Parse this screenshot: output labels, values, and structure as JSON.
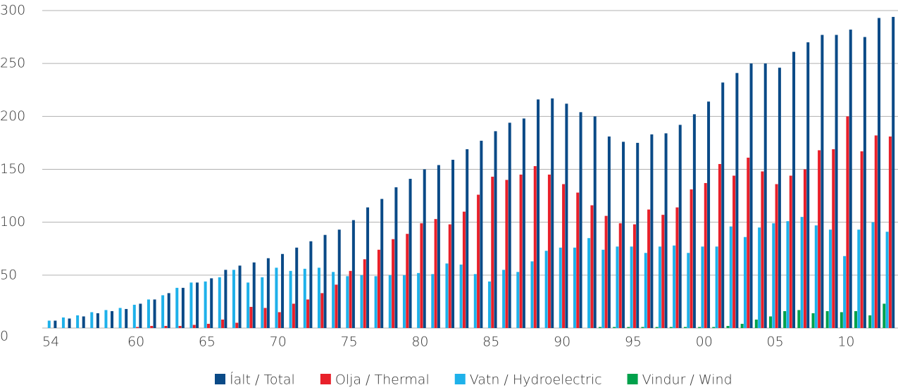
{
  "chart_data": {
    "type": "bar",
    "categories": [
      "54",
      null,
      null,
      null,
      null,
      null,
      "60",
      null,
      null,
      null,
      null,
      "65",
      null,
      null,
      null,
      null,
      "70",
      null,
      null,
      null,
      null,
      "75",
      null,
      null,
      null,
      null,
      "80",
      null,
      null,
      null,
      null,
      "85",
      null,
      null,
      null,
      null,
      "90",
      null,
      null,
      null,
      null,
      "95",
      null,
      null,
      null,
      null,
      "00",
      null,
      null,
      null,
      null,
      "05",
      null,
      null,
      null,
      null,
      "10",
      null,
      null,
      null
    ],
    "series": [
      {
        "name": "Vindur / Wind",
        "color": "#00a14b",
        "values": [
          0,
          0,
          0,
          0,
          0,
          0,
          0,
          0,
          0,
          0,
          0,
          0,
          0,
          0,
          0,
          0,
          0,
          0,
          0,
          0,
          0,
          0,
          0,
          0,
          0,
          0,
          0,
          0,
          0,
          0,
          0,
          0,
          0,
          0,
          0,
          0,
          0,
          0,
          0,
          1,
          1,
          1,
          1,
          1,
          1,
          1,
          1,
          1,
          2,
          4,
          8,
          11,
          16,
          17,
          14,
          16,
          15,
          16,
          12,
          23
        ]
      },
      {
        "name": "Vatn / Hydroelectric",
        "color": "#1eb1ea",
        "values": [
          7,
          10,
          12,
          15,
          17,
          19,
          22,
          27,
          31,
          38,
          43,
          44,
          48,
          55,
          43,
          48,
          57,
          54,
          56,
          57,
          53,
          49,
          50,
          49,
          50,
          50,
          52,
          51,
          61,
          60,
          51,
          44,
          55,
          53,
          63,
          73,
          76,
          76,
          85,
          74,
          77,
          77,
          71,
          77,
          78,
          71,
          77,
          77,
          96,
          86,
          95,
          99,
          101,
          105,
          97,
          93,
          68,
          93,
          100,
          91
        ]
      },
      {
        "name": "Olja / Thermal",
        "color": "#e8202a",
        "values": [
          0,
          0,
          0,
          0,
          0,
          0,
          1,
          2,
          2,
          2,
          3,
          4,
          8,
          5,
          20,
          19,
          15,
          23,
          27,
          33,
          41,
          54,
          65,
          74,
          84,
          89,
          99,
          103,
          98,
          110,
          126,
          143,
          140,
          145,
          153,
          145,
          136,
          128,
          116,
          106,
          99,
          98,
          112,
          107,
          114,
          131,
          137,
          155,
          144,
          161,
          148,
          136,
          144,
          150,
          168,
          169,
          200,
          167,
          182,
          181
        ]
      },
      {
        "name": "Íalt / Total",
        "color": "#0a4a87",
        "values": [
          7,
          9,
          11,
          14,
          16,
          18,
          23,
          27,
          33,
          38,
          43,
          47,
          55,
          59,
          62,
          66,
          70,
          76,
          82,
          88,
          93,
          102,
          114,
          122,
          133,
          141,
          150,
          154,
          159,
          169,
          177,
          186,
          194,
          198,
          216,
          217,
          212,
          204,
          200,
          181,
          176,
          175,
          183,
          184,
          192,
          202,
          214,
          232,
          241,
          250,
          250,
          246,
          261,
          270,
          277,
          277,
          282,
          275,
          293,
          294
        ]
      }
    ],
    "legend_order": [
      "Íalt / Total",
      "Olja / Thermal",
      "Vatn / Hydroelectric",
      "Vindur / Wind"
    ],
    "ylim": [
      0,
      300
    ],
    "yticks": [
      0,
      50,
      100,
      150,
      200,
      250,
      300
    ],
    "grid": true
  }
}
